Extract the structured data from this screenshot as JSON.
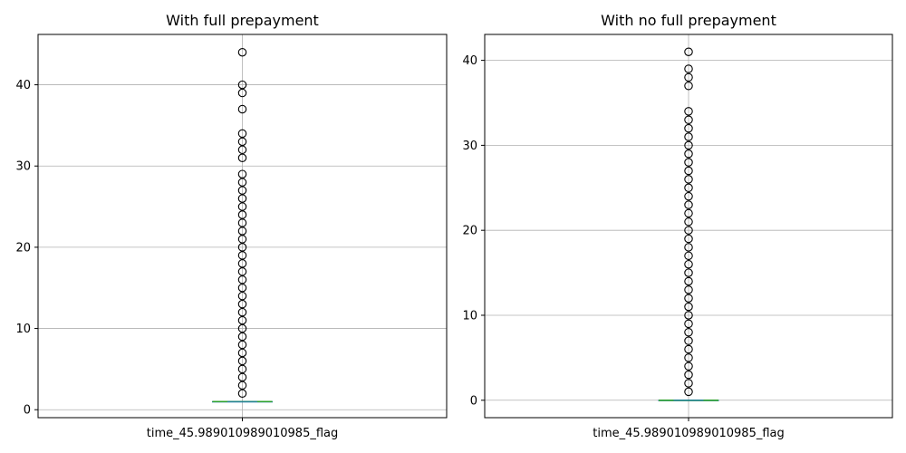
{
  "chart_data": [
    {
      "type": "box",
      "title": "With full prepayment",
      "categories": [
        "time_45.989010989010985_flag"
      ],
      "ylim": [
        -0.98,
        46.2
      ],
      "yticks": [
        0,
        10,
        20,
        30,
        40
      ],
      "grid": true,
      "box": {
        "whislo": 1,
        "q1": 1,
        "median": 1,
        "q3": 1,
        "whishi": 1
      },
      "fliers": [
        2,
        3,
        4,
        5,
        6,
        7,
        8,
        9,
        10,
        11,
        12,
        13,
        14,
        15,
        16,
        17,
        18,
        19,
        20,
        21,
        22,
        23,
        24,
        25,
        26,
        27,
        28,
        29,
        31,
        32,
        33,
        34,
        37,
        39,
        40,
        44
      ]
    },
    {
      "type": "box",
      "title": "With no full prepayment",
      "categories": [
        "time_45.989010989010985_flag"
      ],
      "ylim": [
        -2.05,
        43.05
      ],
      "yticks": [
        0,
        10,
        20,
        30,
        40
      ],
      "grid": true,
      "box": {
        "whislo": 0,
        "q1": 0,
        "median": 0,
        "q3": 0,
        "whishi": 0
      },
      "fliers": [
        1,
        2,
        3,
        4,
        5,
        6,
        7,
        8,
        9,
        10,
        11,
        12,
        13,
        14,
        15,
        16,
        17,
        18,
        19,
        20,
        21,
        22,
        23,
        24,
        25,
        26,
        27,
        28,
        29,
        30,
        31,
        32,
        33,
        34,
        37,
        38,
        39,
        41
      ]
    }
  ],
  "colors": {
    "box": "#1f77b4",
    "median": "#2ca02c",
    "flier_edge": "#000000",
    "grid": "#b0b0b0"
  }
}
